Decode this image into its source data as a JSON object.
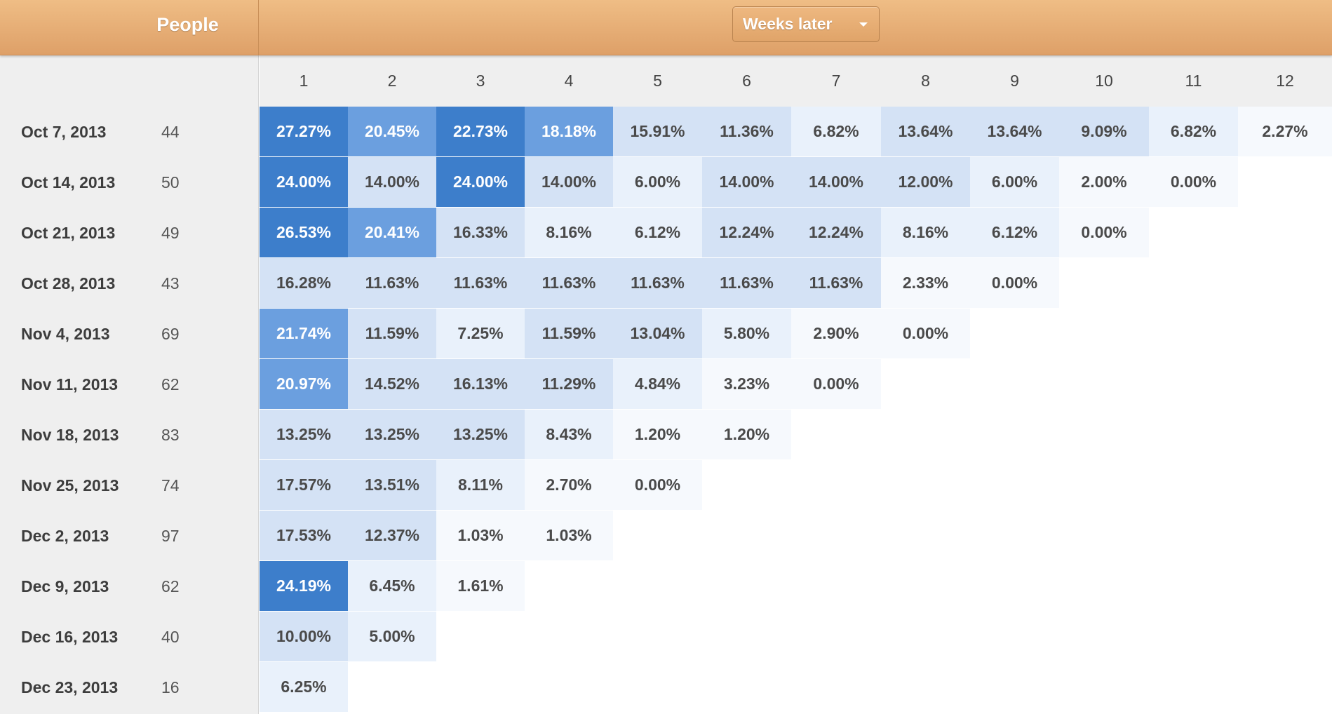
{
  "header": {
    "title": "People",
    "dropdown_label": "Weeks later"
  },
  "columns": [
    "1",
    "2",
    "3",
    "4",
    "5",
    "6",
    "7",
    "8",
    "9",
    "10",
    "11",
    "12"
  ],
  "rows": [
    {
      "label": "Oct 7, 2013",
      "count": "44",
      "values": [
        "27.27%",
        "20.45%",
        "22.73%",
        "18.18%",
        "15.91%",
        "11.36%",
        "6.82%",
        "13.64%",
        "13.64%",
        "9.09%",
        "6.82%",
        "2.27%"
      ]
    },
    {
      "label": "Oct 14, 2013",
      "count": "50",
      "values": [
        "24.00%",
        "14.00%",
        "24.00%",
        "14.00%",
        "6.00%",
        "14.00%",
        "14.00%",
        "12.00%",
        "6.00%",
        "2.00%",
        "0.00%"
      ]
    },
    {
      "label": "Oct 21, 2013",
      "count": "49",
      "values": [
        "26.53%",
        "20.41%",
        "16.33%",
        "8.16%",
        "6.12%",
        "12.24%",
        "12.24%",
        "8.16%",
        "6.12%",
        "0.00%"
      ]
    },
    {
      "label": "Oct 28, 2013",
      "count": "43",
      "values": [
        "16.28%",
        "11.63%",
        "11.63%",
        "11.63%",
        "11.63%",
        "11.63%",
        "11.63%",
        "2.33%",
        "0.00%"
      ]
    },
    {
      "label": "Nov 4, 2013",
      "count": "69",
      "values": [
        "21.74%",
        "11.59%",
        "7.25%",
        "11.59%",
        "13.04%",
        "5.80%",
        "2.90%",
        "0.00%"
      ]
    },
    {
      "label": "Nov 11, 2013",
      "count": "62",
      "values": [
        "20.97%",
        "14.52%",
        "16.13%",
        "11.29%",
        "4.84%",
        "3.23%",
        "0.00%"
      ]
    },
    {
      "label": "Nov 18, 2013",
      "count": "83",
      "values": [
        "13.25%",
        "13.25%",
        "13.25%",
        "8.43%",
        "1.20%",
        "1.20%"
      ]
    },
    {
      "label": "Nov 25, 2013",
      "count": "74",
      "values": [
        "17.57%",
        "13.51%",
        "8.11%",
        "2.70%",
        "0.00%"
      ]
    },
    {
      "label": "Dec 2, 2013",
      "count": "97",
      "values": [
        "17.53%",
        "12.37%",
        "1.03%",
        "1.03%"
      ]
    },
    {
      "label": "Dec 9, 2013",
      "count": "62",
      "values": [
        "24.19%",
        "6.45%",
        "1.61%"
      ]
    },
    {
      "label": "Dec 16, 2013",
      "count": "40",
      "values": [
        "10.00%",
        "5.00%"
      ]
    },
    {
      "label": "Dec 23, 2013",
      "count": "16",
      "values": [
        "6.25%"
      ]
    }
  ],
  "colors": {
    "header": "#e4a86f",
    "cell_darkest": "#3d7ecb",
    "cell_dark": "#6b9fdf",
    "cell_mid": "#d4e2f5",
    "cell_light": "#e9f1fb",
    "cell_faint": "#f6f9fd"
  }
}
